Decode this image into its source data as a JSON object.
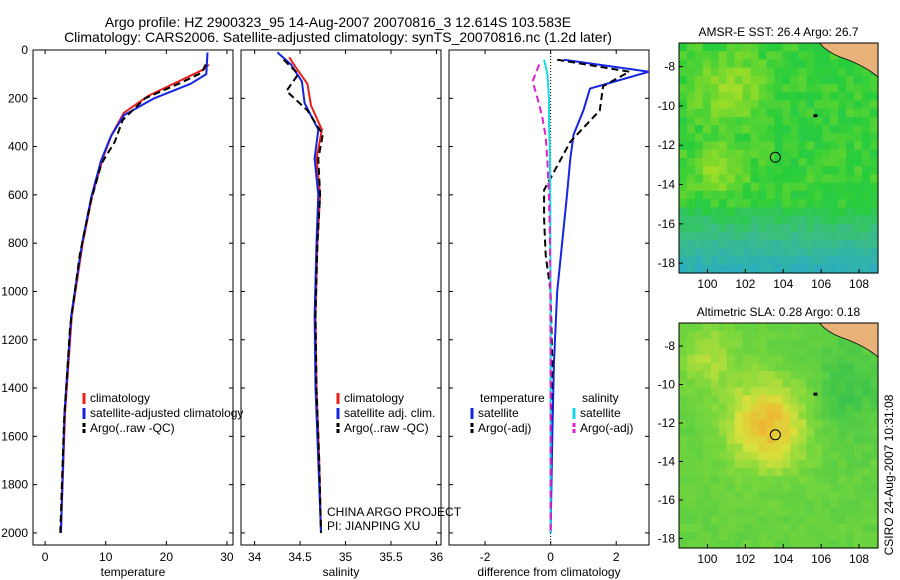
{
  "header": {
    "line1": "Argo profile: HZ 2900323_95 14-Aug-2007 20070816_3 12.614S 103.583E",
    "line2": "Climatology: CARS2006. Satellite-adjusted climatology: synTS_20070816.nc (1.2d later)"
  },
  "colors": {
    "climatology": "#e8201a",
    "satellite": "#1424e0",
    "argo": "#000000",
    "satellite_sal": "#18d8e0",
    "argo_sal_adj": "#e020d0",
    "coast": "#e8b278"
  },
  "chart_data": [
    {
      "type": "line",
      "name": "temperature-profile",
      "xlabel": "temperature",
      "ylabel": "",
      "xlim": [
        -2,
        31
      ],
      "ylim": [
        2050,
        0
      ],
      "yreverse": true,
      "xticks": [
        0,
        10,
        20,
        30
      ],
      "yticks": [
        0,
        200,
        400,
        600,
        800,
        1000,
        1200,
        1400,
        1600,
        1800,
        2000
      ],
      "legend": [
        "climatology",
        "satellite-adjusted climatology",
        "Argo(..raw -QC)"
      ],
      "series": [
        {
          "name": "climatology",
          "color": "red",
          "style": "solid",
          "x": [
            27.0,
            26.2,
            22.0,
            17.0,
            13.0,
            11.0,
            9.5,
            7.8,
            6.2,
            4.4,
            3.3,
            2.6
          ],
          "y": [
            60,
            80,
            130,
            190,
            260,
            350,
            450,
            600,
            800,
            1100,
            1500,
            2000
          ]
        },
        {
          "name": "satellite-adjusted climatology",
          "color": "blue",
          "style": "solid",
          "x": [
            26.8,
            26.6,
            24.0,
            18.0,
            13.0,
            10.8,
            9.2,
            7.6,
            6.1,
            4.3,
            3.2,
            2.6
          ],
          "y": [
            10,
            100,
            140,
            200,
            270,
            360,
            460,
            610,
            800,
            1100,
            1500,
            2000
          ]
        },
        {
          "name": "Argo(..raw -QC)",
          "color": "black",
          "style": "dashed",
          "x": [
            26.5,
            25.8,
            22.0,
            16.5,
            12.8,
            11.5,
            9.3,
            7.5,
            5.7,
            4.1,
            3.1,
            2.5
          ],
          "y": [
            60,
            95,
            140,
            200,
            290,
            380,
            470,
            630,
            850,
            1150,
            1550,
            2000
          ]
        }
      ]
    },
    {
      "type": "line",
      "name": "salinity-profile",
      "xlabel": "salinity",
      "ylabel": "",
      "xlim": [
        33.85,
        36.05
      ],
      "ylim": [
        2050,
        0
      ],
      "yreverse": true,
      "xticks": [
        34,
        34.5,
        35,
        35.5,
        36
      ],
      "legend": [
        "climatology",
        "satellite adj. clim.",
        "Argo(..raw -QC)"
      ],
      "annotations": [
        "CHINA ARGO PROJECT",
        "PI: JIANPING XU"
      ],
      "series": [
        {
          "name": "climatology",
          "color": "red",
          "style": "solid",
          "x": [
            34.38,
            34.45,
            34.58,
            34.62,
            34.74,
            34.68,
            34.72,
            34.69,
            34.67,
            34.68,
            34.71,
            34.73
          ],
          "y": [
            30,
            70,
            140,
            230,
            330,
            450,
            600,
            800,
            1100,
            1400,
            1700,
            2000
          ]
        },
        {
          "name": "satellite adj. clim.",
          "color": "blue",
          "style": "solid",
          "x": [
            34.25,
            34.4,
            34.52,
            34.55,
            34.7,
            34.66,
            34.7,
            34.68,
            34.66,
            34.67,
            34.7,
            34.73
          ],
          "y": [
            10,
            60,
            130,
            220,
            330,
            450,
            600,
            800,
            1100,
            1400,
            1700,
            2000
          ]
        },
        {
          "name": "Argo(..raw -QC)",
          "color": "black",
          "style": "dashed",
          "x": [
            34.32,
            34.48,
            34.35,
            34.58,
            34.75,
            34.7,
            34.72,
            34.69,
            34.67,
            34.68,
            34.71,
            34.73
          ],
          "y": [
            40,
            100,
            170,
            250,
            350,
            450,
            600,
            800,
            1100,
            1400,
            1700,
            2000
          ]
        }
      ]
    },
    {
      "type": "line",
      "name": "difference-profile",
      "xlabel": "difference from climatology",
      "ylabel": "",
      "xlim": [
        -3.1,
        3.0
      ],
      "ylim": [
        2050,
        0
      ],
      "yreverse": true,
      "xticks": [
        -2,
        0,
        2
      ],
      "legend_groups": [
        {
          "title": "temperature",
          "items": [
            "satellite",
            "Argo(-adj)"
          ]
        },
        {
          "title": "salinity",
          "items": [
            "satellite",
            "Argo(-adj)"
          ]
        }
      ],
      "series": [
        {
          "name": "temperature satellite",
          "color": "blue",
          "style": "solid",
          "x": [
            0.4,
            3.0,
            1.2,
            1.0,
            0.7,
            0.6,
            0.5,
            0.35,
            0.2,
            0.1,
            0.05,
            0.0
          ],
          "y": [
            40,
            90,
            160,
            250,
            350,
            450,
            600,
            800,
            1000,
            1300,
            1600,
            2000
          ]
        },
        {
          "name": "temperature Argo(-adj)",
          "color": "black",
          "style": "dashed",
          "x": [
            0.2,
            2.4,
            1.6,
            1.5,
            0.6,
            -0.2,
            -0.2,
            -0.15,
            0.0,
            0.05,
            0.0,
            0.0
          ],
          "y": [
            40,
            90,
            150,
            250,
            380,
            580,
            700,
            850,
            1000,
            1300,
            1600,
            2000
          ]
        },
        {
          "name": "salinity satellite",
          "color": "cyan",
          "style": "solid",
          "x": [
            -0.2,
            -0.1,
            -0.05,
            -0.05,
            -0.03,
            -0.02,
            -0.01,
            -0.01,
            0.0,
            0.0,
            0.0,
            0.0
          ],
          "y": [
            40,
            100,
            200,
            300,
            400,
            500,
            650,
            800,
            1000,
            1300,
            1600,
            2000
          ]
        },
        {
          "name": "salinity Argo(-adj)",
          "color": "magenta",
          "style": "dashed",
          "x": [
            -0.35,
            -0.55,
            -0.4,
            -0.25,
            -0.15,
            -0.1,
            -0.05,
            -0.02,
            -0.01,
            0.0,
            0.0,
            0.0
          ],
          "y": [
            60,
            130,
            200,
            280,
            360,
            460,
            600,
            800,
            1000,
            1300,
            1600,
            2000
          ]
        }
      ]
    },
    {
      "type": "heatmap",
      "name": "sst-map",
      "title": "AMSR-E SST: 26.4 Argo: 26.7",
      "xlim": [
        98.5,
        109
      ],
      "ylim": [
        -18.5,
        -6.8
      ],
      "xticks": [
        100,
        102,
        104,
        106,
        108
      ],
      "yticks": [
        -8,
        -10,
        -12,
        -14,
        -16,
        -18
      ],
      "marker": {
        "lon": 103.583,
        "lat": -12.614
      },
      "island": {
        "lon": 105.7,
        "lat": -10.5
      }
    },
    {
      "type": "heatmap",
      "name": "sla-map",
      "title": "Altimetric SLA: 0.28 Argo: 0.18",
      "xlim": [
        98.5,
        109
      ],
      "ylim": [
        -18.5,
        -6.8
      ],
      "xticks": [
        100,
        102,
        104,
        106,
        108
      ],
      "yticks": [
        -8,
        -10,
        -12,
        -14,
        -16,
        -18
      ],
      "marker": {
        "lon": 103.583,
        "lat": -12.614
      },
      "island": {
        "lon": 105.7,
        "lat": -10.5
      }
    }
  ],
  "side_caption": "CSIRO 24-Aug-2007 10:31:08"
}
